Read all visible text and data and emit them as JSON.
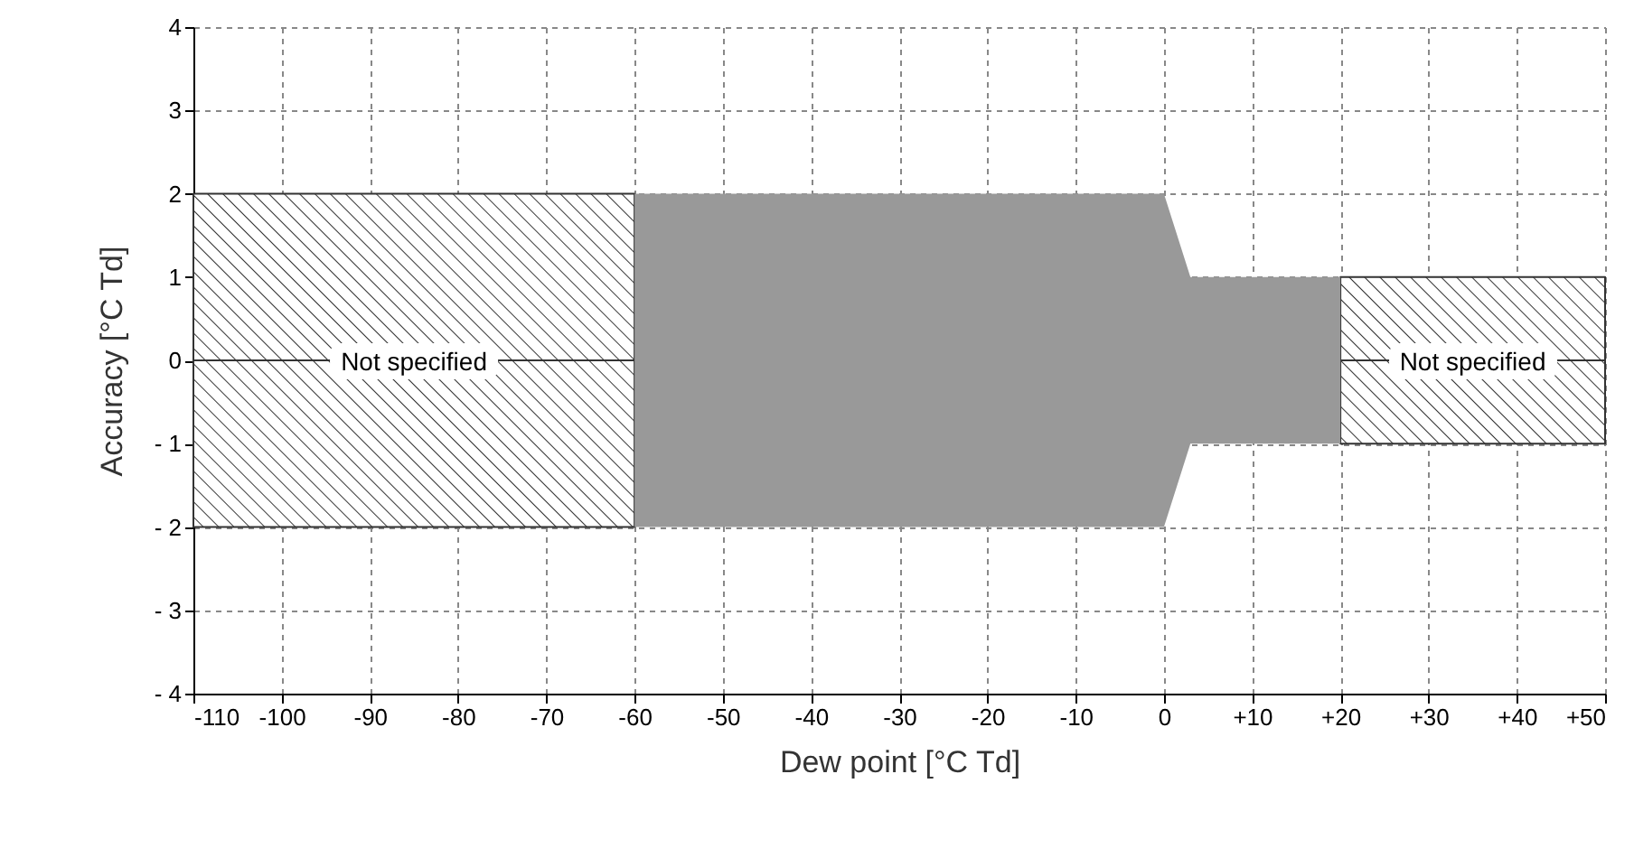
{
  "chart_data": {
    "type": "area",
    "xlabel": "Dew point [°C Td]",
    "ylabel": "Accuracy [°C Td]",
    "series": [
      {
        "color": "#333333",
        "line_style": "solid",
        "x": [
          -110,
          -60
        ],
        "values": [
          2,
          2
        ]
      },
      {
        "color": "#333333",
        "line_style": "solid",
        "x": [
          -110,
          -60
        ],
        "values": [
          -2,
          -2
        ]
      },
      {
        "color": "#333333",
        "line_style": "solid",
        "x": [
          20,
          50
        ],
        "values": [
          1,
          1
        ]
      },
      {
        "color": "#333333",
        "line_style": "solid",
        "x": [
          20,
          50
        ],
        "values": [
          -1,
          -1
        ]
      },
      {
        "color": "#999999",
        "x": [
          -60,
          0,
          3,
          20
        ],
        "values": [
          2,
          2,
          1,
          1
        ]
      },
      {
        "color": "#999999",
        "x": [
          -60,
          0,
          3,
          20
        ],
        "values": [
          -2,
          -2,
          -1,
          -1
        ]
      }
    ],
    "annotations": [
      "Not specified",
      "Not specified"
    ],
    "xlim": [
      -110,
      50
    ],
    "ylim": [
      -4,
      4
    ],
    "xticks": [
      -110,
      -100,
      -90,
      -80,
      -70,
      -60,
      -50,
      -40,
      -30,
      -20,
      -10,
      0,
      {
        "value": 10,
        "label": "+10"
      },
      {
        "value": 20,
        "label": "+20"
      },
      {
        "value": 30,
        "label": "+30"
      },
      {
        "value": 40,
        "label": "+40"
      },
      {
        "value": 50,
        "label": "+50"
      }
    ],
    "yticks": [
      {
        "value": -4,
        "label": "- 4"
      },
      {
        "value": -3,
        "label": "- 3"
      },
      {
        "value": -2,
        "label": "- 2"
      },
      {
        "value": -1,
        "label": "- 1"
      },
      0,
      1,
      2,
      3,
      4
    ],
    "grid": true
  }
}
